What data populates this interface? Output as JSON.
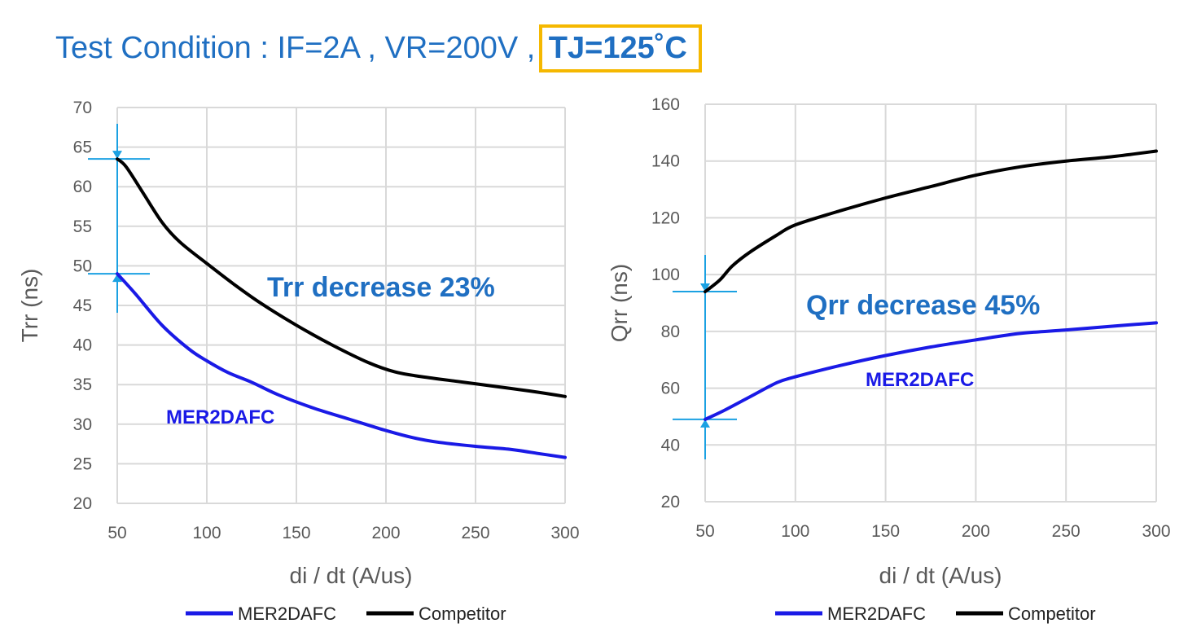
{
  "header": {
    "condition": "Test Condition : IF=2A , VR=200V ,",
    "highlight": "TJ=125˚C",
    "highlight_border_color": "#f5b800",
    "text_color": "#1f6fc2"
  },
  "colors": {
    "mer": "#1a1ae6",
    "competitor": "#000000",
    "marker": "#1ba1e2",
    "grid": "#d9d9d9"
  },
  "chart_data": [
    {
      "type": "line",
      "title": "",
      "xlabel": "di / dt (A/us)",
      "ylabel": "Trr (ns)",
      "xlim": [
        50,
        300
      ],
      "ylim": [
        20,
        70
      ],
      "xticks": [
        50,
        100,
        150,
        200,
        250,
        300
      ],
      "yticks": [
        20,
        25,
        30,
        35,
        40,
        45,
        50,
        55,
        60,
        65,
        70
      ],
      "grid": true,
      "legend_position": "bottom",
      "annotation": "Trr decrease 23%",
      "series_label": "MER2DAFC",
      "markers": {
        "x": 50,
        "top": 63.5,
        "bottom": 49
      },
      "series": [
        {
          "name": "MER2DAFC",
          "color": "#1a1ae6",
          "x": [
            50,
            60,
            75,
            90,
            100,
            112,
            125,
            140,
            160,
            180,
            200,
            215,
            230,
            250,
            270,
            285,
            300
          ],
          "y": [
            49,
            46.5,
            42.5,
            39.5,
            38,
            36.5,
            35.3,
            33.7,
            32,
            30.6,
            29.2,
            28.3,
            27.7,
            27.2,
            26.8,
            26.3,
            25.8
          ]
        },
        {
          "name": "Competitor",
          "color": "#000000",
          "x": [
            50,
            55,
            65,
            75,
            85,
            100,
            115,
            130,
            150,
            170,
            190,
            205,
            220,
            240,
            260,
            280,
            300
          ],
          "y": [
            63.5,
            62.5,
            59,
            55.5,
            53,
            50.3,
            47.7,
            45.3,
            42.5,
            40,
            37.8,
            36.6,
            36,
            35.4,
            34.8,
            34.2,
            33.5
          ]
        }
      ]
    },
    {
      "type": "line",
      "title": "",
      "xlabel": "di / dt (A/us)",
      "ylabel": "Qrr (ns)",
      "xlim": [
        50,
        300
      ],
      "ylim": [
        20,
        160
      ],
      "xticks": [
        50,
        100,
        150,
        200,
        250,
        300
      ],
      "yticks": [
        20,
        40,
        60,
        80,
        100,
        120,
        140,
        160
      ],
      "grid": true,
      "legend_position": "bottom",
      "annotation": "Qrr decrease 45%",
      "series_label": "MER2DAFC",
      "markers": {
        "x": 50,
        "top": 94,
        "bottom": 49
      },
      "series": [
        {
          "name": "MER2DAFC",
          "color": "#1a1ae6",
          "x": [
            50,
            60,
            75,
            90,
            100,
            125,
            150,
            175,
            200,
            225,
            250,
            275,
            300
          ],
          "y": [
            49,
            52,
            57,
            62,
            64,
            68,
            71.5,
            74.5,
            77,
            79.3,
            80.5,
            81.8,
            83
          ]
        },
        {
          "name": "Competitor",
          "color": "#000000",
          "x": [
            50,
            58,
            65,
            75,
            90,
            100,
            125,
            150,
            175,
            200,
            225,
            250,
            275,
            300
          ],
          "y": [
            94,
            98,
            103,
            108,
            114,
            117.5,
            122.5,
            127,
            131,
            135,
            138,
            140,
            141.5,
            143.5
          ]
        }
      ]
    }
  ]
}
